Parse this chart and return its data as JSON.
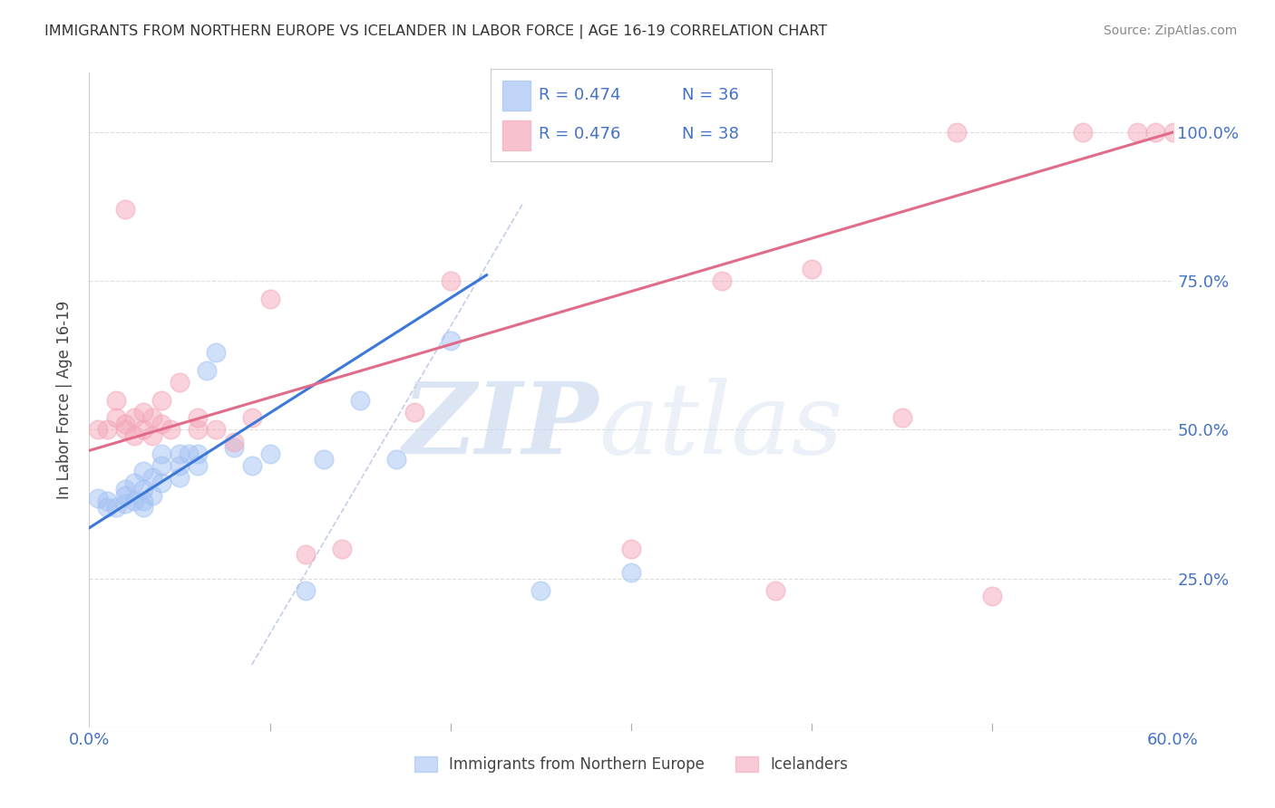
{
  "title": "IMMIGRANTS FROM NORTHERN EUROPE VS ICELANDER IN LABOR FORCE | AGE 16-19 CORRELATION CHART",
  "source": "Source: ZipAtlas.com",
  "ylabel": "In Labor Force | Age 16-19",
  "xlim": [
    0.0,
    0.6
  ],
  "ylim": [
    0.0,
    1.1
  ],
  "legend_R1": "R = 0.474",
  "legend_N1": "N = 36",
  "legend_R2": "R = 0.476",
  "legend_N2": "N = 38",
  "blue_color": "#a4c2f4",
  "pink_color": "#f4a7b9",
  "blue_line_color": "#3c78d8",
  "pink_line_color": "#e06c8a",
  "legend_text_color": "#4472c4",
  "axis_label_color": "#4472c4",
  "background_color": "#ffffff",
  "grid_color": "#dddddd",
  "blue_scatter_x": [
    0.005,
    0.01,
    0.01,
    0.015,
    0.02,
    0.02,
    0.02,
    0.025,
    0.025,
    0.03,
    0.03,
    0.03,
    0.03,
    0.035,
    0.035,
    0.04,
    0.04,
    0.04,
    0.05,
    0.05,
    0.05,
    0.055,
    0.06,
    0.06,
    0.065,
    0.07,
    0.08,
    0.09,
    0.1,
    0.12,
    0.13,
    0.15,
    0.17,
    0.2,
    0.25,
    0.3
  ],
  "blue_scatter_y": [
    0.385,
    0.37,
    0.38,
    0.37,
    0.375,
    0.39,
    0.4,
    0.38,
    0.41,
    0.37,
    0.38,
    0.4,
    0.43,
    0.39,
    0.42,
    0.41,
    0.44,
    0.46,
    0.42,
    0.44,
    0.46,
    0.46,
    0.44,
    0.46,
    0.6,
    0.63,
    0.47,
    0.44,
    0.46,
    0.23,
    0.45,
    0.55,
    0.45,
    0.65,
    0.23,
    0.26
  ],
  "pink_scatter_x": [
    0.005,
    0.01,
    0.015,
    0.015,
    0.02,
    0.02,
    0.02,
    0.025,
    0.025,
    0.03,
    0.03,
    0.035,
    0.035,
    0.04,
    0.04,
    0.045,
    0.05,
    0.06,
    0.06,
    0.07,
    0.08,
    0.09,
    0.1,
    0.12,
    0.14,
    0.18,
    0.2,
    0.3,
    0.35,
    0.38,
    0.4,
    0.45,
    0.48,
    0.5,
    0.55,
    0.58,
    0.59,
    0.6
  ],
  "pink_scatter_y": [
    0.5,
    0.5,
    0.52,
    0.55,
    0.5,
    0.51,
    0.87,
    0.49,
    0.52,
    0.5,
    0.53,
    0.49,
    0.52,
    0.51,
    0.55,
    0.5,
    0.58,
    0.5,
    0.52,
    0.5,
    0.48,
    0.52,
    0.72,
    0.29,
    0.3,
    0.53,
    0.75,
    0.3,
    0.75,
    0.23,
    0.77,
    0.52,
    1.0,
    0.22,
    1.0,
    1.0,
    1.0,
    1.0
  ],
  "blue_trend_x": [
    0.0,
    0.22
  ],
  "blue_trend_y": [
    0.335,
    0.76
  ],
  "pink_trend_x": [
    0.0,
    0.6
  ],
  "pink_trend_y": [
    0.465,
    1.0
  ],
  "dashed_line_x": [
    0.09,
    0.24
  ],
  "dashed_line_y": [
    0.105,
    0.88
  ]
}
